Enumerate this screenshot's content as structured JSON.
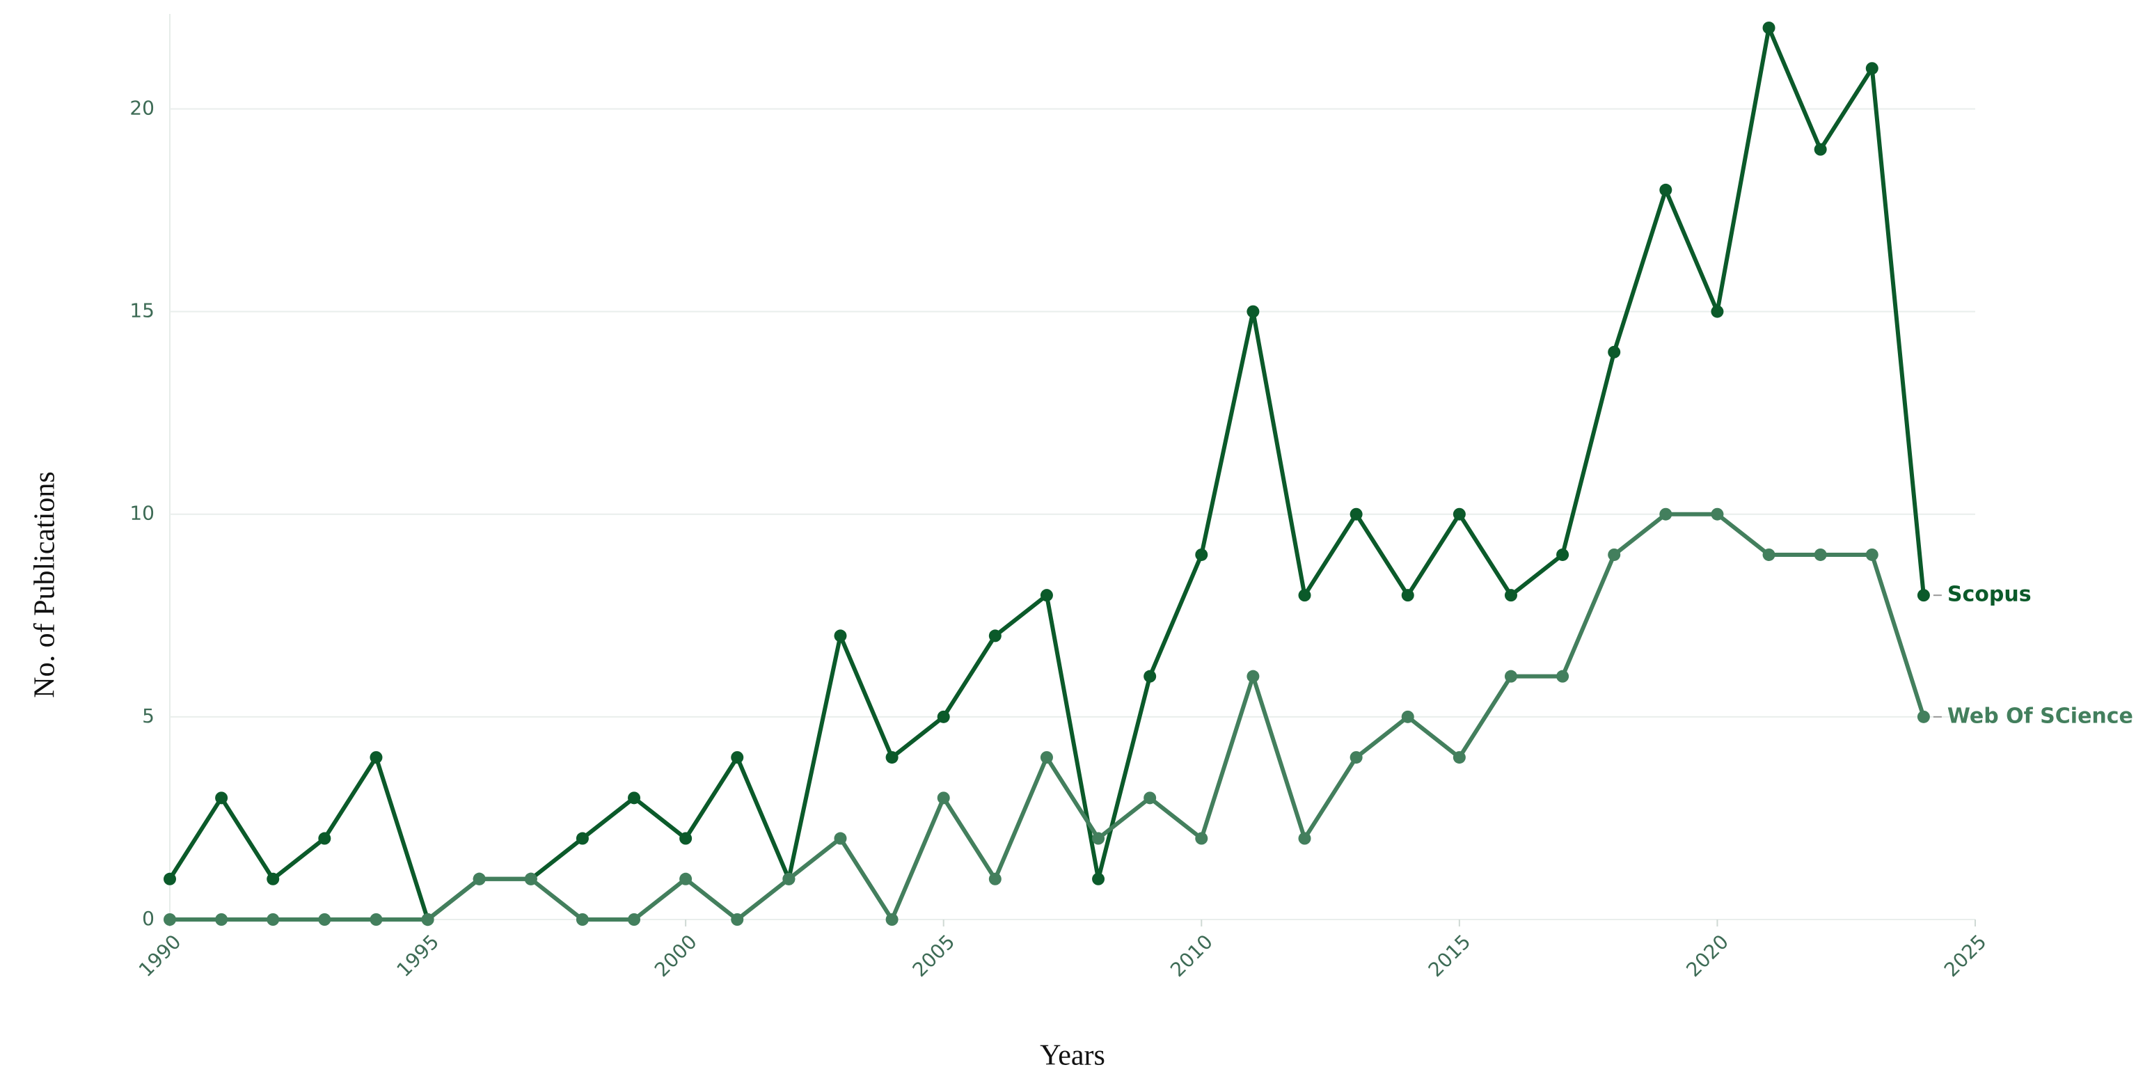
{
  "chart_data": {
    "type": "line",
    "x_label": "Years",
    "y_label": "No. of Publications",
    "x": [
      1990,
      1991,
      1992,
      1993,
      1994,
      1995,
      1996,
      1997,
      1998,
      1999,
      2000,
      2001,
      2002,
      2003,
      2004,
      2005,
      2006,
      2007,
      2008,
      2009,
      2010,
      2011,
      2012,
      2013,
      2014,
      2015,
      2016,
      2017,
      2018,
      2019,
      2020,
      2021,
      2022,
      2023,
      2024
    ],
    "series": [
      {
        "name": "Scopus",
        "color": "#0b5a2a",
        "values": [
          1,
          3,
          1,
          2,
          4,
          0,
          1,
          1,
          2,
          3,
          2,
          4,
          1,
          7,
          4,
          5,
          7,
          8,
          1,
          6,
          9,
          15,
          8,
          10,
          8,
          10,
          8,
          9,
          14,
          18,
          15,
          22,
          19,
          21,
          8
        ]
      },
      {
        "name": "Web Of SCience",
        "color": "#437f5d",
        "values": [
          0,
          0,
          0,
          0,
          0,
          0,
          1,
          1,
          0,
          0,
          1,
          0,
          1,
          2,
          0,
          3,
          1,
          4,
          2,
          3,
          2,
          6,
          2,
          4,
          5,
          4,
          6,
          6,
          9,
          10,
          10,
          9,
          9,
          9,
          5
        ]
      }
    ],
    "xlim": [
      1990,
      2025
    ],
    "xticks": [
      1990,
      1995,
      2000,
      2005,
      2010,
      2015,
      2020,
      2025
    ],
    "ylim": [
      0,
      22
    ],
    "yticks": [
      0,
      5,
      10,
      15,
      20
    ],
    "grid": true
  }
}
